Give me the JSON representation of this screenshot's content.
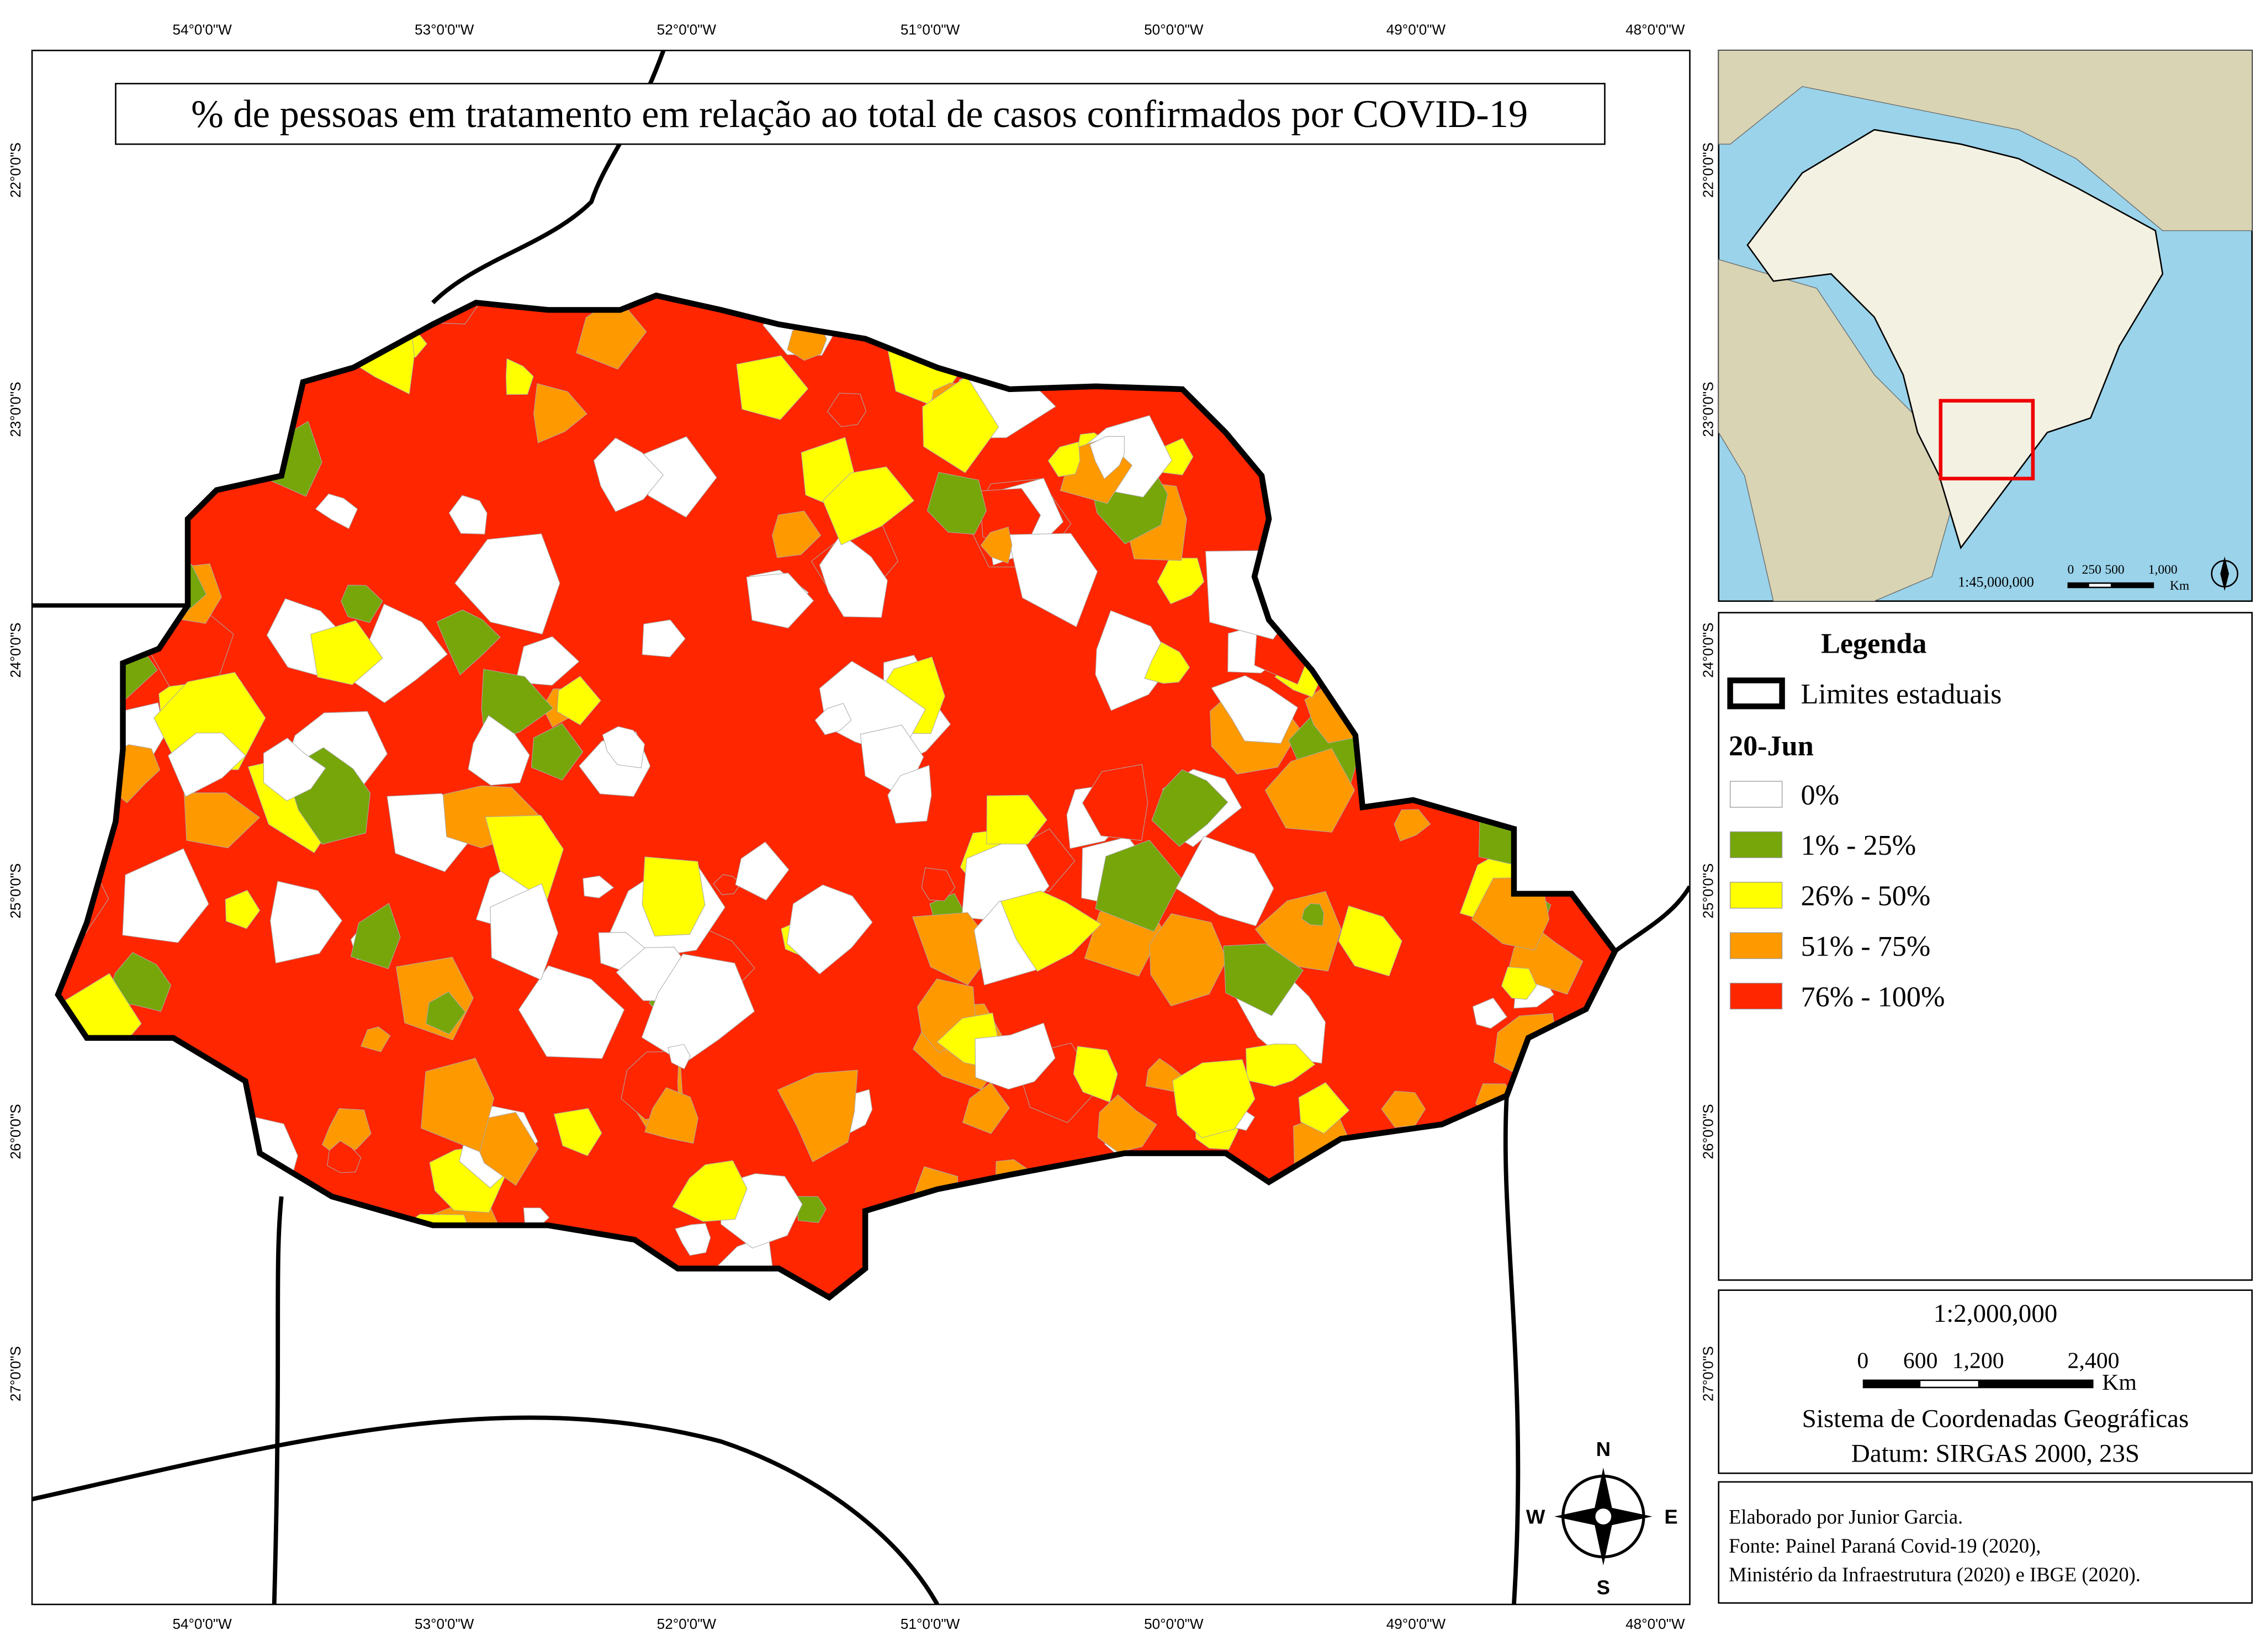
{
  "title": "% de pessoas em tratamento em relação ao total de casos confirmados por COVID-19",
  "grid": {
    "longitudes": [
      "54°0'0\"W",
      "53°0'0\"W",
      "52°0'0\"W",
      "51°0'0\"W",
      "50°0'0\"W",
      "49°0'0\"W",
      "48°0'0\"W"
    ],
    "latitudes": [
      "22°0'0\"S",
      "23°0'0\"S",
      "24°0'0\"S",
      "25°0'0\"S",
      "26°0'0\"S",
      "27°0'0\"S"
    ]
  },
  "inset": {
    "scale": "1:45,000,000",
    "bar_labels": [
      "0",
      "250",
      "500",
      "1,000"
    ],
    "unit": "Km"
  },
  "legend": {
    "title": "Legenda",
    "boundary": "Limites estaduais",
    "date": "20-Jun",
    "classes": [
      {
        "label": "0%",
        "color": "#ffffff"
      },
      {
        "label": "1% - 25%",
        "color": "#76a60a"
      },
      {
        "label": "26% - 50%",
        "color": "#ffff00"
      },
      {
        "label": "51% - 75%",
        "color": "#ff9900"
      },
      {
        "label": "76% - 100%",
        "color": "#ff2600"
      }
    ]
  },
  "scale": {
    "ratio": "1:2,000,000",
    "bar_labels": [
      "0",
      "600",
      "1,200",
      "2,400"
    ],
    "unit": "Km",
    "crs": "Sistema de Coordenadas Geográficas",
    "datum": "Datum: SIRGAS 2000, 23S"
  },
  "credits": [
    "Elaborado por Junior Garcia.",
    "Fonte: Painel Paraná Covid-19 (2020),",
    "Ministério da Infraestrutura (2020) e IBGE (2020)."
  ],
  "compass": [
    "N",
    "E",
    "S",
    "W"
  ]
}
